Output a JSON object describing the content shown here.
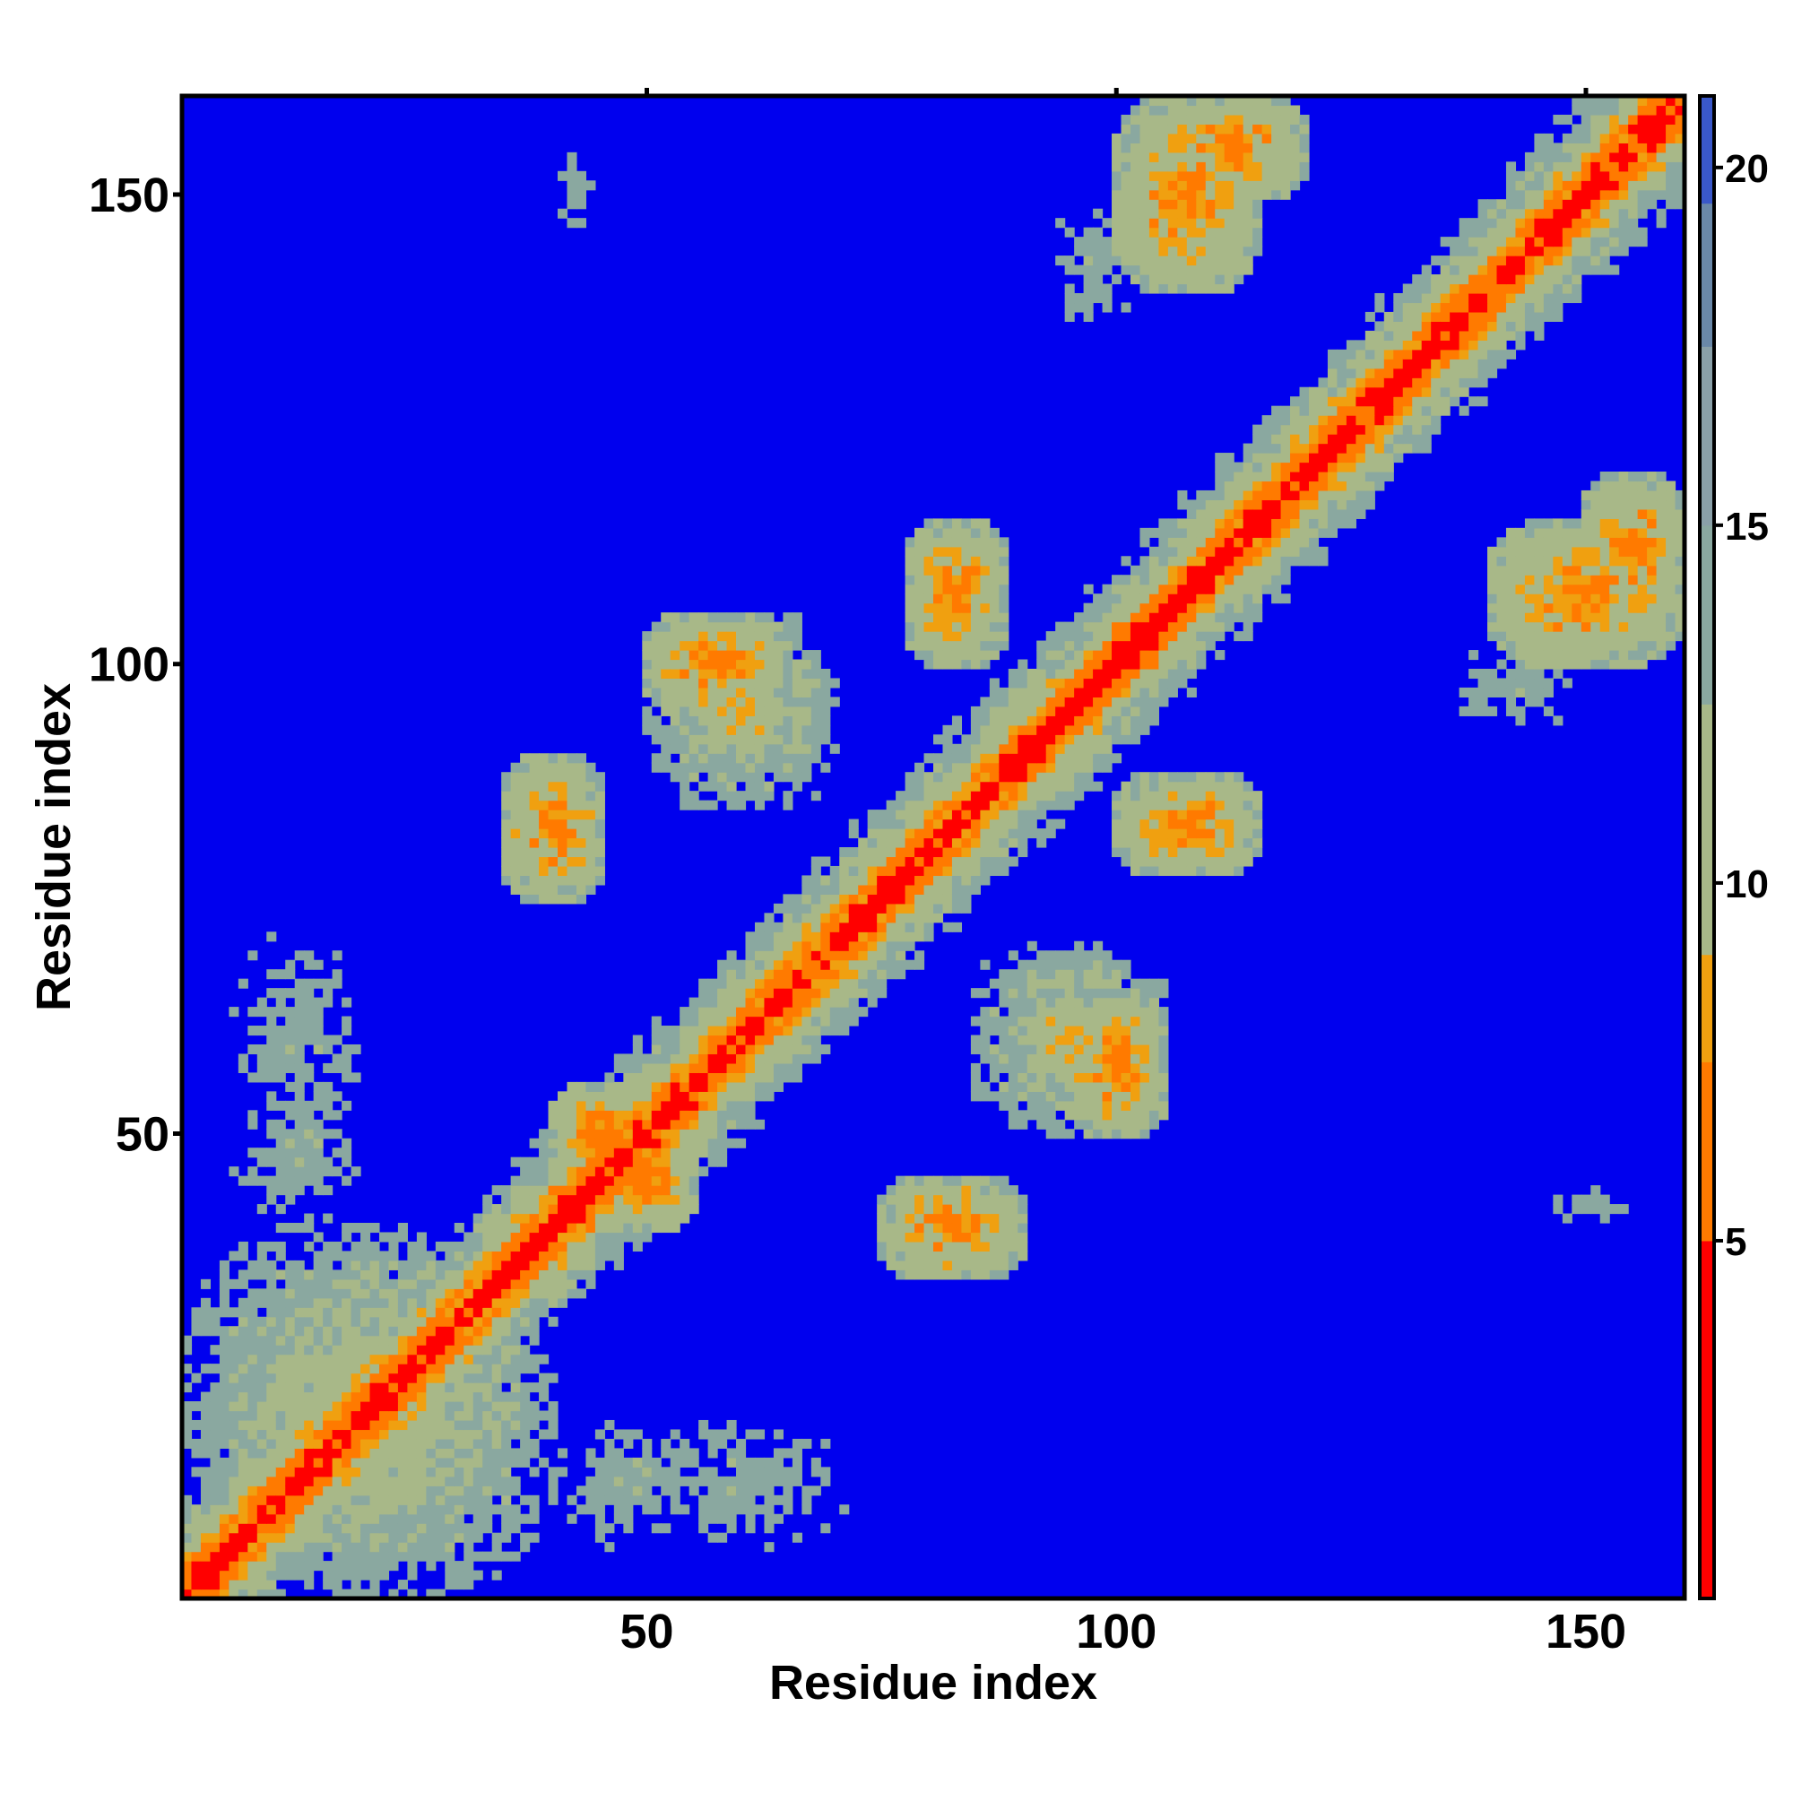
{
  "chart_data": {
    "type": "heatmap",
    "title": "",
    "xlabel": "Residue index",
    "ylabel": "Residue index",
    "n_residues": 160,
    "xlim": [
      1,
      160
    ],
    "ylim": [
      1,
      160
    ],
    "x_ticks": [
      50,
      100,
      150
    ],
    "y_ticks": [
      50,
      100,
      150
    ],
    "symmetric": true,
    "colorbar": {
      "ticks": [
        5,
        10,
        15,
        20
      ],
      "range": [
        0,
        21
      ],
      "cap_value": 21,
      "colors": {
        "near": "#ff0000",
        "close": "#ff7a00",
        "mid": "#f0a010",
        "far": "#a8b888",
        "farther": "#8aa8a0",
        "beyond": "#0000ee"
      }
    },
    "diagonal_band": {
      "description": "distance rises with |i-j| along sequence"
    },
    "contact_regions": [
      {
        "x": [
          1,
          40
        ],
        "y": [
          1,
          40
        ],
        "level": "mid"
      },
      {
        "x": [
          30,
          65
        ],
        "y": [
          1,
          25
        ],
        "level": "far"
      },
      {
        "x": [
          40,
          50
        ],
        "y": [
          45,
          55
        ],
        "level": "close"
      },
      {
        "x": [
          1,
          25
        ],
        "y": [
          40,
          80
        ],
        "level": "far"
      },
      {
        "x": [
          35,
          45
        ],
        "y": [
          75,
          90
        ],
        "level": "close"
      },
      {
        "x": [
          50,
          65
        ],
        "y": [
          95,
          105
        ],
        "level": "close"
      },
      {
        "x": [
          75,
          90
        ],
        "y": [
          35,
          45
        ],
        "level": "close"
      },
      {
        "x": [
          85,
          105
        ],
        "y": [
          50,
          70
        ],
        "level": "mid"
      },
      {
        "x": [
          100,
          115
        ],
        "y": [
          78,
          88
        ],
        "level": "close"
      },
      {
        "x": [
          90,
          105
        ],
        "y": [
          130,
          155
        ],
        "level": "far"
      },
      {
        "x": [
          105,
          120
        ],
        "y": [
          150,
          160
        ],
        "level": "close"
      },
      {
        "x": [
          140,
          160
        ],
        "y": [
          100,
          115
        ],
        "level": "close"
      },
      {
        "x": [
          140,
          160
        ],
        "y": [
          40,
          45
        ],
        "level": "far"
      }
    ]
  }
}
